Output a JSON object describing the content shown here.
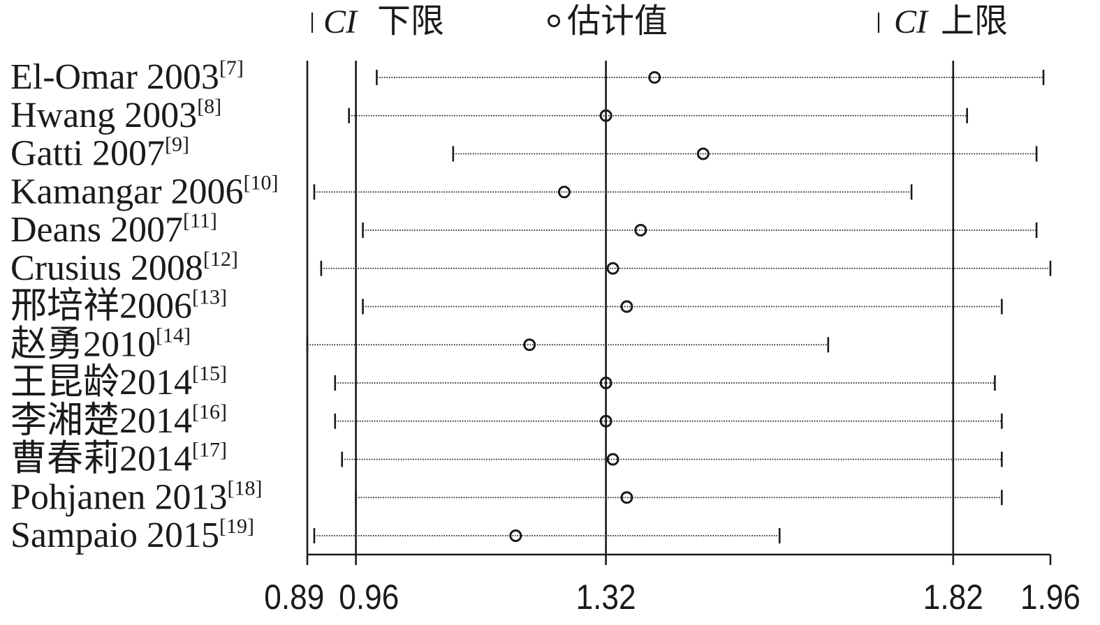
{
  "chart_data": {
    "type": "scatter",
    "xscale": "linear",
    "xlim": [
      0.89,
      1.96
    ],
    "xticks": [
      "0.89",
      "0.96",
      "1.32",
      "1.82",
      "1.96"
    ],
    "grid": false,
    "legend_position": "top",
    "legend": {
      "ci_lower": {
        "abbr": "CI",
        "label": "下限"
      },
      "estimate": {
        "label": "估计值"
      },
      "ci_upper": {
        "abbr": "CI",
        "label": "上限"
      }
    },
    "reference_lines": {
      "lower": 0.96,
      "estimate": 1.32,
      "upper": 1.82
    },
    "studies": [
      {
        "label": "El-Omar 2003",
        "ref": "[7]",
        "lower": 0.99,
        "estimate": 1.39,
        "upper": 1.95
      },
      {
        "label": "Hwang 2003",
        "ref": "[8]",
        "lower": 0.95,
        "estimate": 1.32,
        "upper": 1.84
      },
      {
        "label": "Gatti 2007",
        "ref": "[9]",
        "lower": 1.1,
        "estimate": 1.46,
        "upper": 1.94
      },
      {
        "label": "Kamangar 2006",
        "ref": "[10]",
        "lower": 0.9,
        "estimate": 1.26,
        "upper": 1.76
      },
      {
        "label": "Deans 2007",
        "ref": "[11]",
        "lower": 0.97,
        "estimate": 1.37,
        "upper": 1.94
      },
      {
        "label": "Crusius 2008",
        "ref": "[12]",
        "lower": 0.91,
        "estimate": 1.33,
        "upper": 1.96
      },
      {
        "label": "邢培祥2006",
        "ref": "[13]",
        "lower": 0.97,
        "estimate": 1.35,
        "upper": 1.89
      },
      {
        "label": "赵勇2010",
        "ref": "[14]",
        "lower": 0.89,
        "estimate": 1.21,
        "upper": 1.64
      },
      {
        "label": "王昆龄2014",
        "ref": "[15]",
        "lower": 0.93,
        "estimate": 1.32,
        "upper": 1.88
      },
      {
        "label": "李湘楚2014",
        "ref": "[16]",
        "lower": 0.93,
        "estimate": 1.32,
        "upper": 1.89
      },
      {
        "label": "曹春莉2014",
        "ref": "[17]",
        "lower": 0.94,
        "estimate": 1.33,
        "upper": 1.89
      },
      {
        "label": "Pohjanen 2013",
        "ref": "[18]",
        "lower": 0.96,
        "estimate": 1.35,
        "upper": 1.89
      },
      {
        "label": "Sampaio 2015",
        "ref": "[19]",
        "lower": 0.9,
        "estimate": 1.19,
        "upper": 1.57
      }
    ]
  },
  "colors": {
    "ink": "#1a1a1a",
    "background": "#ffffff"
  }
}
